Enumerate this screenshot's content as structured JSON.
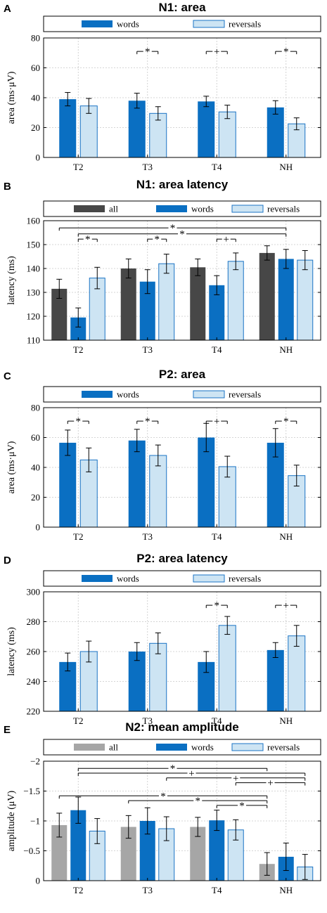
{
  "chart_data": [
    {
      "panel_letter": "A",
      "type": "bar",
      "title": "N1: area",
      "ylabel": "area (ms·μV)",
      "categories": [
        "T2",
        "T3",
        "T4",
        "NH"
      ],
      "ylim": [
        0,
        80
      ],
      "yticks": [
        0,
        20,
        40,
        60,
        80
      ],
      "reversed_y": false,
      "grid": true,
      "legend_placement": "top",
      "series": [
        {
          "name": "words",
          "color": "#0a6fc2",
          "values": [
            39,
            38,
            37.5,
            33.5
          ],
          "errors": [
            4.5,
            5,
            3.5,
            4.5
          ]
        },
        {
          "name": "reversals",
          "color": "#cde4f3",
          "values": [
            34.5,
            29.5,
            30.5,
            22.5
          ],
          "errors": [
            5,
            4.5,
            4.5,
            4
          ]
        }
      ],
      "significance": [
        {
          "label": "*",
          "from": [
            1,
            "words"
          ],
          "to": [
            1,
            "reversals"
          ],
          "y": 71
        },
        {
          "label": "+",
          "from": [
            2,
            "words"
          ],
          "to": [
            2,
            "reversals"
          ],
          "y": 71
        },
        {
          "label": "*",
          "from": [
            3,
            "words"
          ],
          "to": [
            3,
            "reversals"
          ],
          "y": 71
        }
      ]
    },
    {
      "panel_letter": "B",
      "type": "bar",
      "title": "N1: area latency",
      "ylabel": "latency (ms)",
      "categories": [
        "T2",
        "T3",
        "T4",
        "NH"
      ],
      "ylim": [
        110,
        160
      ],
      "yticks": [
        110,
        120,
        130,
        140,
        150,
        160
      ],
      "reversed_y": false,
      "grid": true,
      "legend_placement": "top",
      "series": [
        {
          "name": "all",
          "color": "#474747",
          "values": [
            131.5,
            140,
            140.5,
            146.5
          ],
          "errors": [
            4,
            4,
            3.5,
            3
          ]
        },
        {
          "name": "words",
          "color": "#0a6fc2",
          "values": [
            119.5,
            134.5,
            133,
            144
          ],
          "errors": [
            4,
            5,
            4,
            4
          ]
        },
        {
          "name": "reversals",
          "color": "#cde4f3",
          "values": [
            136,
            142,
            143,
            143.5
          ],
          "errors": [
            4.5,
            4,
            3.5,
            4
          ]
        }
      ],
      "significance": [
        {
          "label": "*",
          "from": [
            0,
            "all"
          ],
          "to": [
            3,
            "words"
          ],
          "y": 157
        },
        {
          "label": "*",
          "from": [
            0,
            "words"
          ],
          "to": [
            3,
            "words"
          ],
          "y": 154.5
        },
        {
          "label": "*",
          "from": [
            0,
            "words"
          ],
          "to": [
            0,
            "reversals"
          ],
          "y": 152.3
        },
        {
          "label": "*",
          "from": [
            1,
            "words"
          ],
          "to": [
            1,
            "reversals"
          ],
          "y": 152.3
        },
        {
          "label": "+",
          "from": [
            2,
            "words"
          ],
          "to": [
            2,
            "reversals"
          ],
          "y": 152.3
        }
      ]
    },
    {
      "panel_letter": "C",
      "type": "bar",
      "title": "P2: area",
      "ylabel": "area (ms·μV)",
      "categories": [
        "T2",
        "T3",
        "T4",
        "NH"
      ],
      "ylim": [
        0,
        80
      ],
      "yticks": [
        0,
        20,
        40,
        60,
        80
      ],
      "reversed_y": false,
      "grid": true,
      "legend_placement": "top",
      "series": [
        {
          "name": "words",
          "color": "#0a6fc2",
          "values": [
            56.5,
            58,
            60,
            56.5
          ],
          "errors": [
            8.5,
            7.5,
            9.5,
            9.5
          ]
        },
        {
          "name": "reversals",
          "color": "#cde4f3",
          "values": [
            45,
            48,
            40.5,
            34.5
          ],
          "errors": [
            8,
            7,
            7,
            7
          ]
        }
      ],
      "significance": [
        {
          "label": "*",
          "from": [
            0,
            "words"
          ],
          "to": [
            0,
            "reversals"
          ],
          "y": 71
        },
        {
          "label": "*",
          "from": [
            1,
            "words"
          ],
          "to": [
            1,
            "reversals"
          ],
          "y": 71
        },
        {
          "label": "+",
          "from": [
            2,
            "words"
          ],
          "to": [
            2,
            "reversals"
          ],
          "y": 71
        },
        {
          "label": "*",
          "from": [
            3,
            "words"
          ],
          "to": [
            3,
            "reversals"
          ],
          "y": 71
        }
      ]
    },
    {
      "panel_letter": "D",
      "type": "bar",
      "title": "P2: area latency",
      "ylabel": "latency (ms)",
      "categories": [
        "T2",
        "T3",
        "T4",
        "NH"
      ],
      "ylim": [
        220,
        300
      ],
      "yticks": [
        220,
        240,
        260,
        280,
        300
      ],
      "reversed_y": false,
      "grid": true,
      "legend_placement": "top",
      "series": [
        {
          "name": "words",
          "color": "#0a6fc2",
          "values": [
            253,
            260,
            253,
            261
          ],
          "errors": [
            6,
            6,
            7,
            5
          ]
        },
        {
          "name": "reversals",
          "color": "#cde4f3",
          "values": [
            260,
            265.5,
            277.5,
            270.5
          ],
          "errors": [
            7,
            7,
            6,
            7
          ]
        }
      ],
      "significance": [
        {
          "label": "*",
          "from": [
            2,
            "words"
          ],
          "to": [
            2,
            "reversals"
          ],
          "y": 291
        },
        {
          "label": "+",
          "from": [
            3,
            "words"
          ],
          "to": [
            3,
            "reversals"
          ],
          "y": 291
        }
      ]
    },
    {
      "panel_letter": "E",
      "type": "bar",
      "title": "N2: mean amplitude",
      "ylabel": "amplitude (μV)",
      "categories": [
        "T2",
        "T3",
        "T4",
        "NH"
      ],
      "ylim": [
        0,
        -2
      ],
      "yticks": [
        0,
        -0.5,
        -1,
        -1.5,
        -2
      ],
      "ytick_labels": [
        "0",
        "−0.5",
        "−1",
        "−1.5",
        "−2"
      ],
      "reversed_y": true,
      "grid": true,
      "legend_placement": "top",
      "series": [
        {
          "name": "all",
          "color": "#a6a6a6",
          "values": [
            -0.93,
            -0.9,
            -0.9,
            -0.28
          ],
          "errors": [
            0.2,
            0.19,
            0.16,
            0.19
          ]
        },
        {
          "name": "words",
          "color": "#0a6fc2",
          "values": [
            -1.18,
            -1.0,
            -1.01,
            -0.4
          ],
          "errors": [
            0.22,
            0.22,
            0.17,
            0.23
          ]
        },
        {
          "name": "reversals",
          "color": "#cde4f3",
          "values": [
            -0.83,
            -0.87,
            -0.85,
            -0.23
          ],
          "errors": [
            0.21,
            0.2,
            0.17,
            0.21
          ]
        }
      ],
      "significance": [
        {
          "label": "*",
          "from": [
            0,
            "words"
          ],
          "to": [
            3,
            "all"
          ],
          "y": -1.88
        },
        {
          "label": "+",
          "from": [
            0,
            "words"
          ],
          "to": [
            3,
            "reversals"
          ],
          "y": -1.8
        },
        {
          "label": "+",
          "from": [
            1,
            "reversals"
          ],
          "to": [
            3,
            "reversals"
          ],
          "y": -1.72
        },
        {
          "label": "+",
          "from": [
            2,
            "reversals"
          ],
          "to": [
            3,
            "reversals"
          ],
          "y": -1.64
        },
        {
          "label": "*",
          "from": [
            0,
            "all"
          ],
          "to": [
            3,
            "all"
          ],
          "y": -1.42
        },
        {
          "label": "*",
          "from": [
            1,
            "all"
          ],
          "to": [
            3,
            "all"
          ],
          "y": -1.34
        },
        {
          "label": "*",
          "from": [
            2,
            "words"
          ],
          "to": [
            3,
            "all"
          ],
          "y": -1.26
        }
      ]
    }
  ]
}
